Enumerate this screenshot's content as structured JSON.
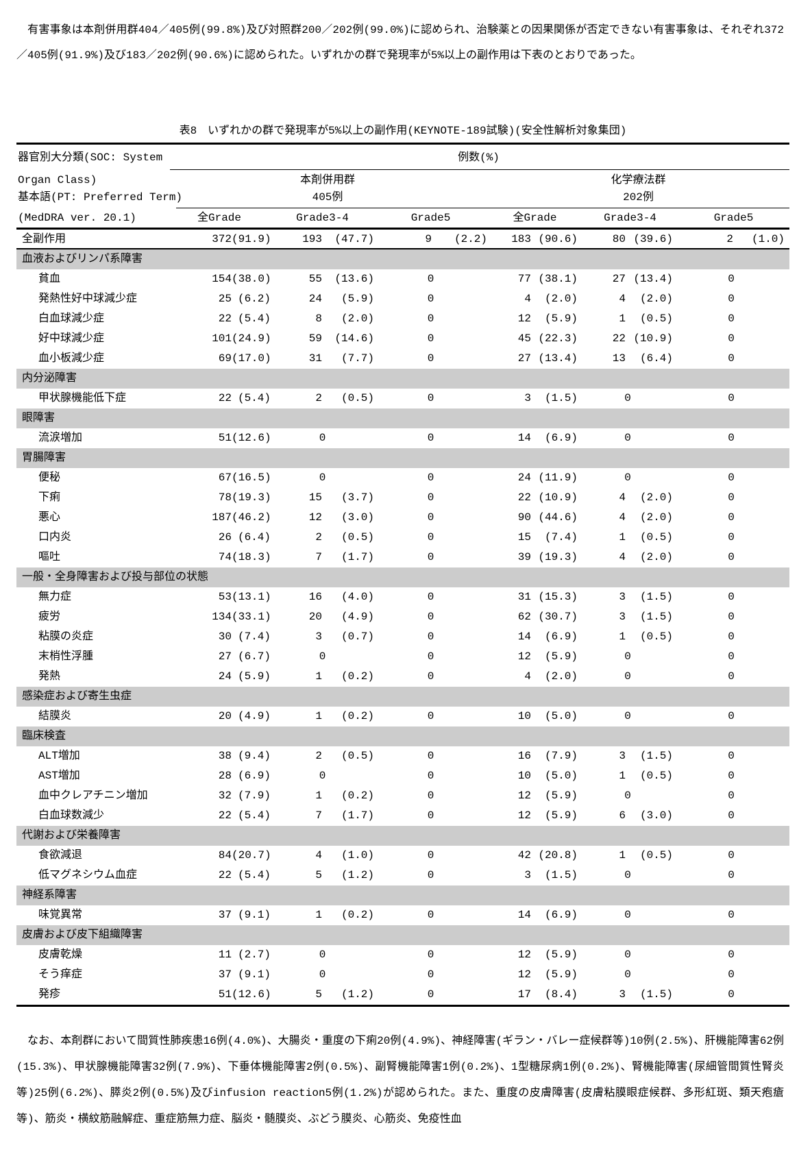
{
  "colors": {
    "band": "#cccccc",
    "ink": "#000000",
    "paper": "#ffffff"
  },
  "intro": "　有害事象は本剤併用群404／405例(99.8%)及び対照群200／202例(99.0%)に認められ、治験薬との因果関係が否定できない有害事象は、それぞれ372／405例(91.9%)及び183／202例(90.6%)に認められた。いずれかの群で発現率が5%以上の副作用は下表のとおりであった。",
  "table": {
    "title": "表8　いずれかの群で発現率が5%以上の副作用(KEYNOTE-189試験)(安全性解析対象集団)",
    "header": {
      "row_label_lines": [
        "器官別大分類(SOC: System",
        " Organ Class)",
        "基本語(PT: Preferred Term)",
        "(MedDRA ver. 20.1)"
      ],
      "cases_label": "例数(%)",
      "group1": {
        "name": "本剤併用群",
        "n": "405例"
      },
      "group2": {
        "name": "化学療法群",
        "n": "202例"
      },
      "grade_columns": [
        "全Grade",
        "Grade3-4",
        "Grade5",
        "全Grade",
        "Grade3-4",
        "Grade5"
      ]
    },
    "rows": [
      {
        "type": "total",
        "name": "全副作用",
        "cells": [
          [
            "372",
            "(91.9)"
          ],
          [
            "193",
            "(47.7)"
          ],
          [
            "9",
            "(2.2)"
          ],
          [
            "183",
            "(90.6)"
          ],
          [
            "80",
            "(39.6)"
          ],
          [
            "2",
            "(1.0)"
          ]
        ]
      },
      {
        "type": "soc",
        "name": "血液およびリンパ系障害"
      },
      {
        "type": "pt",
        "name": "貧血",
        "cells": [
          [
            "154",
            "(38.0)"
          ],
          [
            "55",
            "(13.6)"
          ],
          [
            "0",
            ""
          ],
          [
            "77",
            "(38.1)"
          ],
          [
            "27",
            "(13.4)"
          ],
          [
            "0",
            ""
          ]
        ]
      },
      {
        "type": "pt",
        "name": "発熱性好中球減少症",
        "cells": [
          [
            "25",
            "(6.2)"
          ],
          [
            "24",
            "(5.9)"
          ],
          [
            "0",
            ""
          ],
          [
            "4",
            "(2.0)"
          ],
          [
            "4",
            "(2.0)"
          ],
          [
            "0",
            ""
          ]
        ]
      },
      {
        "type": "pt",
        "name": "白血球減少症",
        "cells": [
          [
            "22",
            "(5.4)"
          ],
          [
            "8",
            "(2.0)"
          ],
          [
            "0",
            ""
          ],
          [
            "12",
            "(5.9)"
          ],
          [
            "1",
            "(0.5)"
          ],
          [
            "0",
            ""
          ]
        ]
      },
      {
        "type": "pt",
        "name": "好中球減少症",
        "cells": [
          [
            "101",
            "(24.9)"
          ],
          [
            "59",
            "(14.6)"
          ],
          [
            "0",
            ""
          ],
          [
            "45",
            "(22.3)"
          ],
          [
            "22",
            "(10.9)"
          ],
          [
            "0",
            ""
          ]
        ]
      },
      {
        "type": "pt",
        "name": "血小板減少症",
        "cells": [
          [
            "69",
            "(17.0)"
          ],
          [
            "31",
            "(7.7)"
          ],
          [
            "0",
            ""
          ],
          [
            "27",
            "(13.4)"
          ],
          [
            "13",
            "(6.4)"
          ],
          [
            "0",
            ""
          ]
        ]
      },
      {
        "type": "soc",
        "name": "内分泌障害"
      },
      {
        "type": "pt",
        "name": "甲状腺機能低下症",
        "cells": [
          [
            "22",
            "(5.4)"
          ],
          [
            "2",
            "(0.5)"
          ],
          [
            "0",
            ""
          ],
          [
            "3",
            "(1.5)"
          ],
          [
            "0",
            ""
          ],
          [
            "0",
            ""
          ]
        ]
      },
      {
        "type": "soc",
        "name": "眼障害"
      },
      {
        "type": "pt",
        "name": "流涙増加",
        "cells": [
          [
            "51",
            "(12.6)"
          ],
          [
            "0",
            ""
          ],
          [
            "0",
            ""
          ],
          [
            "14",
            "(6.9)"
          ],
          [
            "0",
            ""
          ],
          [
            "0",
            ""
          ]
        ]
      },
      {
        "type": "soc",
        "name": "胃腸障害"
      },
      {
        "type": "pt",
        "name": "便秘",
        "cells": [
          [
            "67",
            "(16.5)"
          ],
          [
            "0",
            ""
          ],
          [
            "0",
            ""
          ],
          [
            "24",
            "(11.9)"
          ],
          [
            "0",
            ""
          ],
          [
            "0",
            ""
          ]
        ]
      },
      {
        "type": "pt",
        "name": "下痢",
        "cells": [
          [
            "78",
            "(19.3)"
          ],
          [
            "15",
            "(3.7)"
          ],
          [
            "0",
            ""
          ],
          [
            "22",
            "(10.9)"
          ],
          [
            "4",
            "(2.0)"
          ],
          [
            "0",
            ""
          ]
        ]
      },
      {
        "type": "pt",
        "name": "悪心",
        "cells": [
          [
            "187",
            "(46.2)"
          ],
          [
            "12",
            "(3.0)"
          ],
          [
            "0",
            ""
          ],
          [
            "90",
            "(44.6)"
          ],
          [
            "4",
            "(2.0)"
          ],
          [
            "0",
            ""
          ]
        ]
      },
      {
        "type": "pt",
        "name": "口内炎",
        "cells": [
          [
            "26",
            "(6.4)"
          ],
          [
            "2",
            "(0.5)"
          ],
          [
            "0",
            ""
          ],
          [
            "15",
            "(7.4)"
          ],
          [
            "1",
            "(0.5)"
          ],
          [
            "0",
            ""
          ]
        ]
      },
      {
        "type": "pt",
        "name": "嘔吐",
        "cells": [
          [
            "74",
            "(18.3)"
          ],
          [
            "7",
            "(1.7)"
          ],
          [
            "0",
            ""
          ],
          [
            "39",
            "(19.3)"
          ],
          [
            "4",
            "(2.0)"
          ],
          [
            "0",
            ""
          ]
        ]
      },
      {
        "type": "soc",
        "name": "一般・全身障害および投与部位の状態"
      },
      {
        "type": "pt",
        "name": "無力症",
        "cells": [
          [
            "53",
            "(13.1)"
          ],
          [
            "16",
            "(4.0)"
          ],
          [
            "0",
            ""
          ],
          [
            "31",
            "(15.3)"
          ],
          [
            "3",
            "(1.5)"
          ],
          [
            "0",
            ""
          ]
        ]
      },
      {
        "type": "pt",
        "name": "疲労",
        "cells": [
          [
            "134",
            "(33.1)"
          ],
          [
            "20",
            "(4.9)"
          ],
          [
            "0",
            ""
          ],
          [
            "62",
            "(30.7)"
          ],
          [
            "3",
            "(1.5)"
          ],
          [
            "0",
            ""
          ]
        ]
      },
      {
        "type": "pt",
        "name": "粘膜の炎症",
        "cells": [
          [
            "30",
            "(7.4)"
          ],
          [
            "3",
            "(0.7)"
          ],
          [
            "0",
            ""
          ],
          [
            "14",
            "(6.9)"
          ],
          [
            "1",
            "(0.5)"
          ],
          [
            "0",
            ""
          ]
        ]
      },
      {
        "type": "pt",
        "name": "末梢性浮腫",
        "cells": [
          [
            "27",
            "(6.7)"
          ],
          [
            "0",
            ""
          ],
          [
            "0",
            ""
          ],
          [
            "12",
            "(5.9)"
          ],
          [
            "0",
            ""
          ],
          [
            "0",
            ""
          ]
        ]
      },
      {
        "type": "pt",
        "name": "発熱",
        "cells": [
          [
            "24",
            "(5.9)"
          ],
          [
            "1",
            "(0.2)"
          ],
          [
            "0",
            ""
          ],
          [
            "4",
            "(2.0)"
          ],
          [
            "0",
            ""
          ],
          [
            "0",
            ""
          ]
        ]
      },
      {
        "type": "soc",
        "name": "感染症および寄生虫症"
      },
      {
        "type": "pt",
        "name": "結膜炎",
        "cells": [
          [
            "20",
            "(4.9)"
          ],
          [
            "1",
            "(0.2)"
          ],
          [
            "0",
            ""
          ],
          [
            "10",
            "(5.0)"
          ],
          [
            "0",
            ""
          ],
          [
            "0",
            ""
          ]
        ]
      },
      {
        "type": "soc",
        "name": "臨床検査"
      },
      {
        "type": "pt",
        "name": "ALT増加",
        "cells": [
          [
            "38",
            "(9.4)"
          ],
          [
            "2",
            "(0.5)"
          ],
          [
            "0",
            ""
          ],
          [
            "16",
            "(7.9)"
          ],
          [
            "3",
            "(1.5)"
          ],
          [
            "0",
            ""
          ]
        ]
      },
      {
        "type": "pt",
        "name": "AST増加",
        "cells": [
          [
            "28",
            "(6.9)"
          ],
          [
            "0",
            ""
          ],
          [
            "0",
            ""
          ],
          [
            "10",
            "(5.0)"
          ],
          [
            "1",
            "(0.5)"
          ],
          [
            "0",
            ""
          ]
        ]
      },
      {
        "type": "pt",
        "name": "血中クレアチニン増加",
        "cells": [
          [
            "32",
            "(7.9)"
          ],
          [
            "1",
            "(0.2)"
          ],
          [
            "0",
            ""
          ],
          [
            "12",
            "(5.9)"
          ],
          [
            "0",
            ""
          ],
          [
            "0",
            ""
          ]
        ]
      },
      {
        "type": "pt",
        "name": "白血球数減少",
        "cells": [
          [
            "22",
            "(5.4)"
          ],
          [
            "7",
            "(1.7)"
          ],
          [
            "0",
            ""
          ],
          [
            "12",
            "(5.9)"
          ],
          [
            "6",
            "(3.0)"
          ],
          [
            "0",
            ""
          ]
        ]
      },
      {
        "type": "soc",
        "name": "代謝および栄養障害"
      },
      {
        "type": "pt",
        "name": "食欲減退",
        "cells": [
          [
            "84",
            "(20.7)"
          ],
          [
            "4",
            "(1.0)"
          ],
          [
            "0",
            ""
          ],
          [
            "42",
            "(20.8)"
          ],
          [
            "1",
            "(0.5)"
          ],
          [
            "0",
            ""
          ]
        ]
      },
      {
        "type": "pt",
        "name": "低マグネシウム血症",
        "cells": [
          [
            "22",
            "(5.4)"
          ],
          [
            "5",
            "(1.2)"
          ],
          [
            "0",
            ""
          ],
          [
            "3",
            "(1.5)"
          ],
          [
            "0",
            ""
          ],
          [
            "0",
            ""
          ]
        ]
      },
      {
        "type": "soc",
        "name": "神経系障害"
      },
      {
        "type": "pt",
        "name": "味覚異常",
        "cells": [
          [
            "37",
            "(9.1)"
          ],
          [
            "1",
            "(0.2)"
          ],
          [
            "0",
            ""
          ],
          [
            "14",
            "(6.9)"
          ],
          [
            "0",
            ""
          ],
          [
            "0",
            ""
          ]
        ]
      },
      {
        "type": "soc",
        "name": "皮膚および皮下組織障害"
      },
      {
        "type": "pt",
        "name": "皮膚乾燥",
        "cells": [
          [
            "11",
            "(2.7)"
          ],
          [
            "0",
            ""
          ],
          [
            "0",
            ""
          ],
          [
            "12",
            "(5.9)"
          ],
          [
            "0",
            ""
          ],
          [
            "0",
            ""
          ]
        ]
      },
      {
        "type": "pt",
        "name": "そう痒症",
        "cells": [
          [
            "37",
            "(9.1)"
          ],
          [
            "0",
            ""
          ],
          [
            "0",
            ""
          ],
          [
            "12",
            "(5.9)"
          ],
          [
            "0",
            ""
          ],
          [
            "0",
            ""
          ]
        ]
      },
      {
        "type": "pt",
        "name": "発疹",
        "cells": [
          [
            "51",
            "(12.6)"
          ],
          [
            "5",
            "(1.2)"
          ],
          [
            "0",
            ""
          ],
          [
            "17",
            "(8.4)"
          ],
          [
            "3",
            "(1.5)"
          ],
          [
            "0",
            ""
          ]
        ]
      }
    ]
  },
  "footnote": "　なお、本剤群において間質性肺疾患16例(4.0%)、大腸炎・重度の下痢20例(4.9%)、神経障害(ギラン・バレー症候群等)10例(2.5%)、肝機能障害62例(15.3%)、甲状腺機能障害32例(7.9%)、下垂体機能障害2例(0.5%)、副腎機能障害1例(0.2%)、1型糖尿病1例(0.2%)、腎機能障害(尿細管間質性腎炎等)25例(6.2%)、膵炎2例(0.5%)及びinfusion reaction5例(1.2%)が認められた。また、重度の皮膚障害(皮膚粘膜眼症候群、多形紅斑、類天疱瘡等)、筋炎・横紋筋融解症、重症筋無力症、脳炎・髄膜炎、ぶどう膜炎、心筋炎、免疫性血"
}
